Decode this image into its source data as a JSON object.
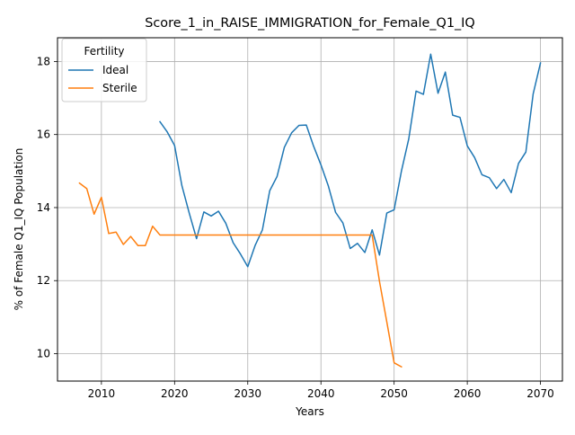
{
  "chart_data": {
    "type": "line",
    "title": "Score_1_in_RAISE_IMMIGRATION_for_Female_Q1_IQ",
    "xlabel": "Years",
    "ylabel": "% of Female Q1_IQ Population",
    "xlim": [
      2004,
      2073
    ],
    "ylim": [
      9.25,
      18.65
    ],
    "xticks": [
      2010,
      2020,
      2030,
      2040,
      2050,
      2060,
      2070
    ],
    "yticks": [
      10,
      12,
      14,
      16,
      18
    ],
    "grid": true,
    "legend": {
      "title": "Fertility",
      "placement": "top-left"
    },
    "series": [
      {
        "name": "Ideal",
        "color": "#1f77b4",
        "x": [
          2018,
          2019,
          2020,
          2021,
          2022,
          2023,
          2024,
          2025,
          2026,
          2027,
          2028,
          2029,
          2030,
          2031,
          2032,
          2033,
          2034,
          2035,
          2036,
          2037,
          2038,
          2039,
          2040,
          2041,
          2042,
          2043,
          2044,
          2045,
          2046,
          2047,
          2048,
          2049,
          2050,
          2051,
          2052,
          2053,
          2054,
          2055,
          2056,
          2057,
          2058,
          2059,
          2060,
          2061,
          2062,
          2063,
          2064,
          2065,
          2066,
          2067,
          2068,
          2069,
          2070
        ],
        "y": [
          16.35,
          16.07,
          15.7,
          14.6,
          13.85,
          13.15,
          13.88,
          13.77,
          13.9,
          13.57,
          13.04,
          12.73,
          12.38,
          12.96,
          13.39,
          14.46,
          14.85,
          15.65,
          16.05,
          16.25,
          16.26,
          15.68,
          15.17,
          14.6,
          13.87,
          13.58,
          12.88,
          13.02,
          12.77,
          13.39,
          12.7,
          13.85,
          13.94,
          15.0,
          15.88,
          17.19,
          17.1,
          18.2,
          17.13,
          17.71,
          16.53,
          16.47,
          15.69,
          15.37,
          14.9,
          14.82,
          14.52,
          14.77,
          14.41,
          15.21,
          15.52,
          17.11,
          17.96
        ]
      },
      {
        "name": "Sterile",
        "color": "#ff7f0e",
        "x": [
          2007,
          2008,
          2009,
          2010,
          2011,
          2012,
          2013,
          2014,
          2015,
          2016,
          2017,
          2018,
          2019,
          2020,
          2021,
          2022,
          2023,
          2024,
          2025,
          2026,
          2027,
          2028,
          2029,
          2030,
          2031,
          2032,
          2033,
          2034,
          2035,
          2036,
          2037,
          2038,
          2039,
          2040,
          2041,
          2042,
          2043,
          2044,
          2045,
          2046,
          2047,
          2048,
          2049,
          2050,
          2051
        ],
        "y": [
          14.67,
          14.52,
          13.82,
          14.28,
          13.29,
          13.33,
          12.99,
          13.21,
          12.96,
          12.96,
          13.49,
          13.25,
          13.25,
          13.25,
          13.25,
          13.25,
          13.25,
          13.25,
          13.25,
          13.25,
          13.25,
          13.25,
          13.25,
          13.25,
          13.25,
          13.25,
          13.25,
          13.25,
          13.25,
          13.25,
          13.25,
          13.25,
          13.25,
          13.25,
          13.25,
          13.25,
          13.25,
          13.25,
          13.25,
          13.25,
          13.25,
          11.98,
          10.87,
          9.75,
          9.64
        ]
      }
    ]
  }
}
